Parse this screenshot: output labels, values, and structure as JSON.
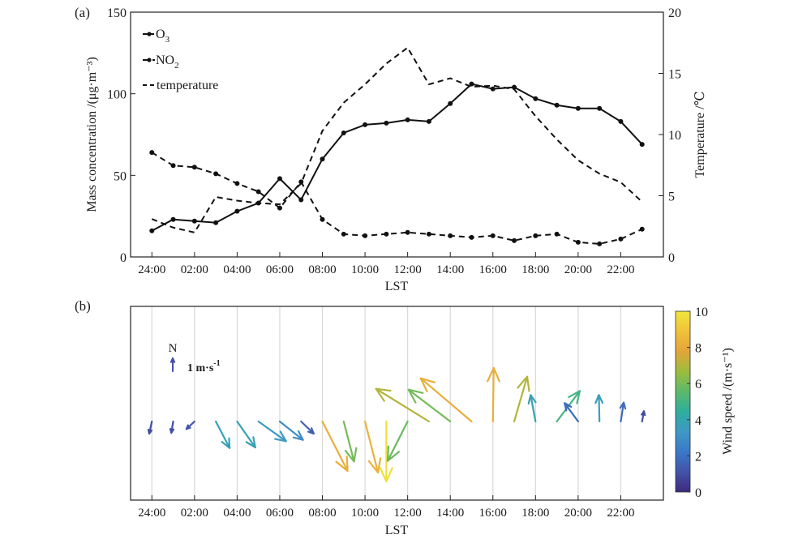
{
  "chart_data": [
    {
      "panel_label": "(a)",
      "type": "line",
      "xlabel": "LST",
      "ylabel": "Mass concentration /(μg·m⁻³)",
      "ylabel_right": "Temperature /℃",
      "x_hours": [
        0,
        1,
        2,
        3,
        4,
        5,
        6,
        7,
        8,
        9,
        10,
        11,
        12,
        13,
        14,
        15,
        16,
        17,
        18,
        19,
        20,
        21,
        22,
        23
      ],
      "xtick_labels": [
        "24:00",
        "02:00",
        "04:00",
        "06:00",
        "08:00",
        "10:00",
        "12:00",
        "14:00",
        "16:00",
        "18:00",
        "20:00",
        "22:00"
      ],
      "xtick_hours": [
        0,
        2,
        4,
        6,
        8,
        10,
        12,
        14,
        16,
        18,
        20,
        22
      ],
      "xlim": [
        -1,
        24
      ],
      "ylim": [
        0,
        150
      ],
      "yticks": [
        "0",
        "50",
        "100",
        "150"
      ],
      "ylim_right": [
        0,
        20
      ],
      "yticks_right": [
        "0",
        "5",
        "10",
        "15",
        "20"
      ],
      "legend_position": "top-left",
      "series": [
        {
          "name": "O",
          "sub": "3",
          "style": "solid-marker",
          "axis": "left",
          "values": [
            16,
            23,
            22,
            21,
            28,
            33,
            48,
            35,
            60,
            76,
            81,
            82,
            84,
            83,
            94,
            106,
            103,
            104,
            97,
            93,
            91,
            91,
            83,
            69
          ]
        },
        {
          "name": "NO",
          "sub": "2",
          "style": "dashed-marker",
          "axis": "left",
          "values": [
            64,
            56,
            55,
            51,
            45,
            40,
            30,
            46,
            23,
            14,
            13,
            14,
            15,
            14,
            13,
            12,
            13,
            10,
            13,
            14,
            9,
            8,
            11,
            17
          ]
        },
        {
          "name": "temperature",
          "sub": "",
          "style": "dashed",
          "axis": "right",
          "values": [
            3.1,
            2.4,
            2.0,
            4.9,
            4.6,
            4.4,
            4.3,
            6.0,
            10.3,
            12.6,
            14.1,
            15.8,
            17.1,
            14.1,
            14.6,
            13.9,
            14.0,
            13.7,
            11.5,
            9.6,
            7.9,
            6.8,
            6.1,
            4.5
          ]
        }
      ]
    },
    {
      "panel_label": "(b)",
      "type": "quiver",
      "xlabel": "LST",
      "xtick_labels": [
        "24:00",
        "02:00",
        "04:00",
        "06:00",
        "08:00",
        "10:00",
        "12:00",
        "14:00",
        "16:00",
        "18:00",
        "20:00",
        "22:00"
      ],
      "xtick_hours": [
        0,
        2,
        4,
        6,
        8,
        10,
        12,
        14,
        16,
        18,
        20,
        22
      ],
      "xlim": [
        -1,
        24
      ],
      "grid": "vertical",
      "reference": {
        "label_north": "N",
        "label_speed": "1 m·s",
        "label_speed_exp": "-1",
        "u": 0,
        "v": 2
      },
      "colorbar": {
        "label": "Wind speed /(m·s⁻¹)",
        "range": [
          0,
          10
        ],
        "ticks": [
          "0",
          "2",
          "4",
          "6",
          "8",
          "10"
        ],
        "colormap": [
          "#3e2a7e",
          "#4253a8",
          "#3a78c8",
          "#3f98c6",
          "#2eae9c",
          "#5bba6a",
          "#9cbc3c",
          "#e3a43a",
          "#f0c23a",
          "#f0e63c"
        ]
      },
      "arrows": [
        {
          "hour": 0,
          "u": -0.41,
          "v": -1.88,
          "speed": 1.0
        },
        {
          "hour": 1,
          "u": -0.29,
          "v": -1.75,
          "speed": 1.0
        },
        {
          "hour": 2,
          "u": -1.25,
          "v": -1.16,
          "speed": 1.2
        },
        {
          "hour": 3,
          "u": 2.13,
          "v": -4.09,
          "speed": 3.8
        },
        {
          "hour": 4,
          "u": 2.8,
          "v": -4.0,
          "speed": 3.8
        },
        {
          "hour": 5,
          "u": 4.25,
          "v": -3.04,
          "speed": 3.5
        },
        {
          "hour": 6,
          "u": 3.58,
          "v": -2.84,
          "speed": 3.0
        },
        {
          "hour": 7,
          "u": 1.95,
          "v": -1.88,
          "speed": 1.5
        },
        {
          "hour": 8,
          "u": 3.88,
          "v": -7.63,
          "speed": 8.2
        },
        {
          "hour": 9,
          "u": 1.59,
          "v": -6.16,
          "speed": 6.0
        },
        {
          "hour": 10,
          "u": 2.0,
          "v": -7.88,
          "speed": 8.3
        },
        {
          "hour": 11,
          "u": 0.0,
          "v": -9.25,
          "speed": 9.8
        },
        {
          "hour": 12,
          "u": -3.08,
          "v": -6.08,
          "speed": 5.8
        },
        {
          "hour": 13,
          "u": -8.16,
          "v": 5.04,
          "speed": 7.0
        },
        {
          "hour": 14,
          "u": -6.43,
          "v": 4.91,
          "speed": 6.0
        },
        {
          "hour": 15,
          "u": -7.84,
          "v": 6.66,
          "speed": 8.2
        },
        {
          "hour": 16,
          "u": 0.13,
          "v": 8.25,
          "speed": 8.2
        },
        {
          "hour": 17,
          "u": 2.0,
          "v": 6.91,
          "speed": 7.0
        },
        {
          "hour": 18,
          "u": -0.75,
          "v": 4.08,
          "speed": 3.8
        },
        {
          "hour": 19,
          "u": 3.54,
          "v": 4.7,
          "speed": 5.0
        },
        {
          "hour": 20,
          "u": -2.08,
          "v": 2.83,
          "speed": 1.8
        },
        {
          "hour": 21,
          "u": -0.09,
          "v": 4.08,
          "speed": 3.6
        },
        {
          "hour": 22,
          "u": 0.45,
          "v": 2.91,
          "speed": 1.8
        },
        {
          "hour": 23,
          "u": 0.29,
          "v": 1.58,
          "speed": 1.0
        }
      ]
    }
  ]
}
